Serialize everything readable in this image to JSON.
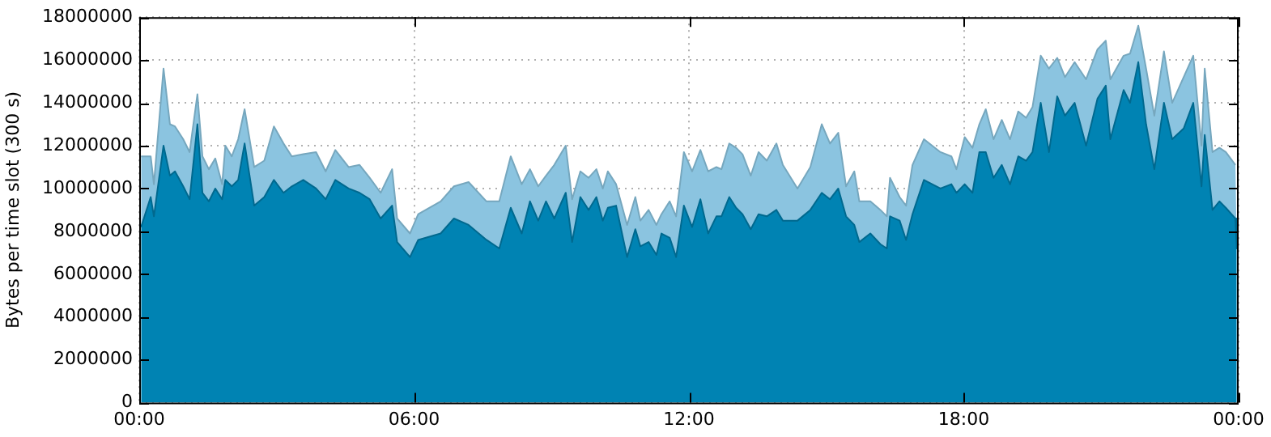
{
  "chart_data": {
    "type": "area",
    "ylabel": "Bytes per time slot (300 s)",
    "stacked": true,
    "grid": true,
    "xlim": [
      0,
      24
    ],
    "xticks": [
      {
        "value": 0,
        "label": "00:00"
      },
      {
        "value": 6,
        "label": "06:00"
      },
      {
        "value": 12,
        "label": "12:00"
      },
      {
        "value": 18,
        "label": "18:00"
      },
      {
        "value": 24,
        "label": "00:00"
      }
    ],
    "ylim": [
      0,
      18000000
    ],
    "yticks": [
      0,
      2000000,
      4000000,
      6000000,
      8000000,
      10000000,
      12000000,
      14000000,
      16000000,
      18000000
    ],
    "x": [
      0.04,
      0.25,
      0.32,
      0.53,
      0.67,
      0.78,
      0.96,
      1.1,
      1.27,
      1.38,
      1.52,
      1.66,
      1.81,
      1.88,
      2.02,
      2.16,
      2.3,
      2.51,
      2.73,
      2.94,
      3.15,
      3.33,
      3.58,
      3.86,
      4.07,
      4.28,
      4.57,
      4.81,
      5.03,
      5.27,
      5.52,
      5.63,
      5.91,
      6.09,
      6.58,
      6.87,
      7.19,
      7.58,
      7.86,
      8.11,
      8.35,
      8.53,
      8.71,
      8.88,
      9.06,
      9.31,
      9.45,
      9.63,
      9.81,
      9.98,
      10.12,
      10.23,
      10.41,
      10.65,
      10.83,
      10.94,
      11.12,
      11.29,
      11.4,
      11.58,
      11.72,
      11.89,
      12.07,
      12.25,
      12.42,
      12.6,
      12.71,
      12.88,
      13.03,
      13.17,
      13.35,
      13.52,
      13.7,
      13.91,
      14.05,
      14.37,
      14.65,
      14.9,
      15.08,
      15.26,
      15.43,
      15.61,
      15.72,
      15.96,
      16.18,
      16.32,
      16.39,
      16.6,
      16.74,
      16.88,
      17.13,
      17.49,
      17.73,
      17.84,
      18.02,
      18.19,
      18.34,
      18.48,
      18.65,
      18.83,
      19.01,
      19.19,
      19.36,
      19.5,
      19.68,
      19.86,
      20.04,
      20.21,
      20.42,
      20.67,
      20.92,
      21.1,
      21.2,
      21.49,
      21.63,
      21.81,
      21.98,
      22.16,
      22.37,
      22.55,
      22.8,
      23.01,
      23.19,
      23.26,
      23.43,
      23.58,
      23.72,
      23.93,
      23.96
    ],
    "series": [
      {
        "color": "#0083b3",
        "values": [
          8200000,
          9600000,
          8700000,
          12000000,
          10600000,
          10800000,
          10100000,
          9500000,
          13000000,
          9800000,
          9400000,
          10000000,
          9500000,
          10400000,
          10100000,
          10400000,
          12100000,
          9200000,
          9600000,
          10400000,
          9800000,
          10100000,
          10400000,
          10000000,
          9500000,
          10400000,
          10000000,
          9800000,
          9500000,
          8600000,
          9200000,
          7500000,
          6800000,
          7600000,
          7900000,
          8600000,
          8300000,
          7600000,
          7200000,
          9100000,
          7900000,
          9400000,
          8500000,
          9400000,
          8600000,
          9800000,
          7500000,
          9600000,
          9000000,
          9600000,
          8500000,
          9100000,
          9200000,
          6800000,
          8100000,
          7300000,
          7500000,
          6900000,
          7900000,
          7700000,
          6800000,
          9200000,
          8200000,
          9500000,
          7900000,
          8700000,
          8700000,
          9600000,
          9100000,
          8800000,
          8100000,
          8800000,
          8700000,
          9000000,
          8500000,
          8500000,
          9000000,
          9800000,
          9500000,
          10000000,
          8700000,
          8300000,
          7500000,
          7900000,
          7400000,
          7200000,
          8700000,
          8500000,
          7600000,
          8800000,
          10400000,
          10000000,
          10200000,
          9800000,
          10200000,
          9800000,
          11700000,
          11700000,
          10500000,
          11100000,
          10200000,
          11500000,
          11300000,
          11700000,
          14000000,
          11700000,
          14300000,
          13400000,
          14000000,
          12000000,
          14200000,
          14800000,
          12300000,
          14600000,
          14000000,
          15900000,
          13000000,
          10900000,
          14000000,
          12300000,
          12800000,
          14000000,
          10100000,
          12500000,
          9000000,
          9400000,
          9100000,
          8600000,
          7200000
        ]
      },
      {
        "color": "#8bc4e0",
        "values": [
          3300000,
          1900000,
          1500000,
          3600000,
          2400000,
          2100000,
          2200000,
          2200000,
          1400000,
          1700000,
          1500000,
          1400000,
          700000,
          1600000,
          1400000,
          1900000,
          1600000,
          1800000,
          1700000,
          2500000,
          2300000,
          1400000,
          1200000,
          1700000,
          1300000,
          1400000,
          1000000,
          1300000,
          1000000,
          1200000,
          1700000,
          1100000,
          1100000,
          1200000,
          1500000,
          1500000,
          2000000,
          1800000,
          2200000,
          2400000,
          2300000,
          1500000,
          1600000,
          1200000,
          2500000,
          2200000,
          2000000,
          1200000,
          1500000,
          1300000,
          1500000,
          1700000,
          1000000,
          1500000,
          1500000,
          1200000,
          1500000,
          1400000,
          900000,
          1700000,
          1900000,
          2500000,
          2600000,
          2300000,
          2900000,
          2300000,
          2200000,
          2500000,
          2800000,
          2800000,
          2500000,
          2900000,
          2600000,
          3100000,
          2600000,
          1500000,
          2000000,
          3200000,
          2600000,
          2600000,
          1400000,
          2500000,
          1900000,
          1500000,
          1600000,
          1500000,
          1800000,
          1100000,
          1600000,
          2300000,
          1900000,
          1700000,
          1300000,
          1100000,
          2200000,
          2100000,
          1300000,
          2000000,
          1800000,
          2100000,
          2100000,
          2100000,
          2000000,
          2100000,
          2200000,
          3900000,
          1800000,
          1800000,
          1900000,
          3100000,
          2300000,
          2100000,
          2800000,
          1600000,
          2300000,
          1700000,
          2600000,
          2500000,
          2400000,
          1700000,
          2400000,
          2200000,
          1900000,
          3100000,
          2700000,
          2500000,
          2600000,
          2500000,
          3900000
        ]
      }
    ]
  }
}
